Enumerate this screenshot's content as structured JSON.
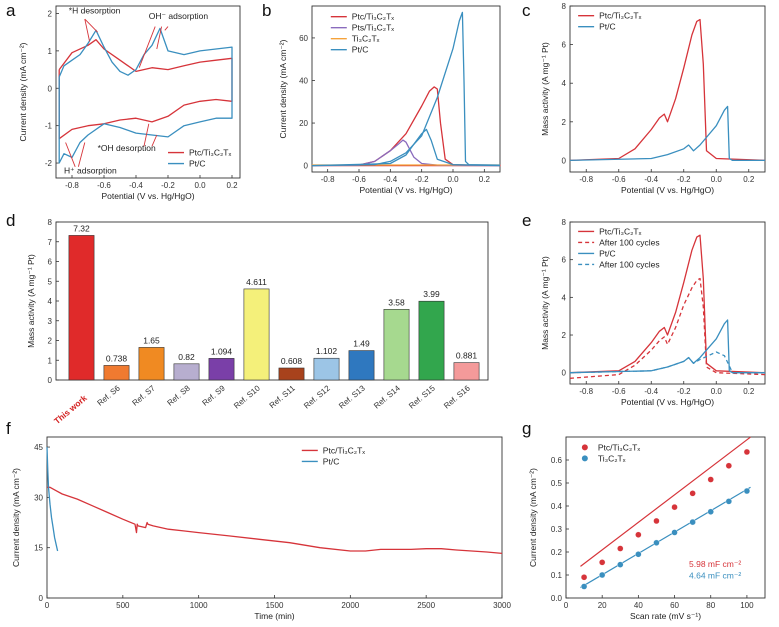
{
  "colors": {
    "red": "#d6343a",
    "blue": "#3a8fbf",
    "purple": "#8a6bbd",
    "orange": "#f5a23a",
    "green": "#2e9e4f",
    "highlight": "#d42020"
  },
  "chart_data": [
    {
      "id": "a",
      "type": "line",
      "panel": "a",
      "xlabel": "Potential (V vs. Hg/HgO)",
      "ylabel": "Current density (mA cm⁻²)",
      "xlim": [
        -0.9,
        0.25
      ],
      "ylim": [
        -2.4,
        2.2
      ],
      "xticks": [
        -0.8,
        -0.6,
        -0.4,
        -0.2,
        0.0,
        0.2
      ],
      "xtick_labels": [
        "-0.8",
        "-0.6",
        "-0.4",
        "-0.2",
        "0.0",
        "0.2"
      ],
      "yticks": [
        -2,
        -1,
        0,
        1,
        2
      ],
      "ytick_labels": [
        "-2",
        "-1",
        "0",
        "1",
        "2"
      ],
      "legend": [
        "Ptc/Ti₃C₂Tₓ",
        "Pt/C"
      ],
      "annotations": [
        "*H desorption",
        "OH⁻ adsorption",
        "*OH desorption",
        "H⁺ adsorption"
      ],
      "series": [
        {
          "name": "Ptc/Ti₃C₂Tₓ",
          "color_key": "red",
          "x": [
            -0.88,
            -0.8,
            -0.7,
            -0.65,
            -0.6,
            -0.5,
            -0.4,
            -0.3,
            -0.2,
            -0.1,
            0.0,
            0.1,
            0.2,
            0.2,
            0.1,
            0.0,
            -0.1,
            -0.2,
            -0.3,
            -0.4,
            -0.5,
            -0.6,
            -0.7,
            -0.8,
            -0.88,
            -0.88
          ],
          "y": [
            0.5,
            0.95,
            1.15,
            1.3,
            1.05,
            0.75,
            0.45,
            0.55,
            0.5,
            0.6,
            0.7,
            0.75,
            0.8,
            -0.35,
            -0.3,
            -0.35,
            -0.45,
            -0.75,
            -0.9,
            -0.8,
            -0.85,
            -0.95,
            -1.0,
            -1.1,
            -1.35,
            0.5
          ]
        },
        {
          "name": "Pt/C",
          "color_key": "blue",
          "x": [
            -0.88,
            -0.85,
            -0.8,
            -0.75,
            -0.7,
            -0.65,
            -0.6,
            -0.55,
            -0.5,
            -0.45,
            -0.4,
            -0.35,
            -0.3,
            -0.25,
            -0.2,
            -0.1,
            0.0,
            0.1,
            0.2,
            0.2,
            0.1,
            0.0,
            -0.1,
            -0.2,
            -0.3,
            -0.4,
            -0.5,
            -0.6,
            -0.7,
            -0.75,
            -0.8,
            -0.85,
            -0.88,
            -0.88
          ],
          "y": [
            0.3,
            0.6,
            0.75,
            0.9,
            1.2,
            1.55,
            1.1,
            0.7,
            0.45,
            0.35,
            0.5,
            0.9,
            1.15,
            1.6,
            1.0,
            0.9,
            1.0,
            1.05,
            1.1,
            -0.8,
            -0.8,
            -0.9,
            -1.0,
            -1.3,
            -1.25,
            -1.2,
            -1.05,
            -0.95,
            -1.25,
            -1.45,
            -1.85,
            -1.75,
            -2.0,
            0.3
          ]
        }
      ]
    },
    {
      "id": "b",
      "type": "line",
      "panel": "b",
      "xlabel": "Potential (V vs. Hg/HgO)",
      "ylabel": "Current density (mA cm⁻²)",
      "xlim": [
        -0.9,
        0.3
      ],
      "ylim": [
        -3,
        75
      ],
      "xticks": [
        -0.8,
        -0.6,
        -0.4,
        -0.2,
        0.0,
        0.2
      ],
      "xtick_labels": [
        "-0.8",
        "-0.6",
        "-0.4",
        "-0.2",
        "0.0",
        "0.2"
      ],
      "yticks": [
        0,
        20,
        40,
        60
      ],
      "ytick_labels": [
        "0",
        "20",
        "40",
        "60"
      ],
      "legend": [
        "Ptc/Ti₃C₂Tₓ",
        "Pts/Ti₃C₂Tₓ",
        "Ti₃C₂Tₓ",
        "Pt/C"
      ],
      "series": [
        {
          "name": "Ptc/Ti₃C₂Tₓ",
          "color_key": "red",
          "x": [
            -0.9,
            -0.6,
            -0.5,
            -0.4,
            -0.3,
            -0.2,
            -0.15,
            -0.12,
            -0.1,
            -0.08,
            -0.05,
            0.0,
            0.1,
            0.3,
            0.3,
            0.1,
            0.0,
            -0.2,
            -0.5,
            -0.9
          ],
          "y": [
            0,
            0.3,
            2,
            7,
            15,
            28,
            35,
            37,
            36,
            20,
            3,
            0.5,
            0.2,
            0.1,
            0,
            0,
            0,
            0,
            0,
            0
          ]
        },
        {
          "name": "Pts/Ti₃C₂Tₓ",
          "color_key": "purple",
          "x": [
            -0.9,
            -0.6,
            -0.5,
            -0.4,
            -0.35,
            -0.32,
            -0.3,
            -0.25,
            -0.2,
            -0.1,
            0.3
          ],
          "y": [
            0,
            0.2,
            2,
            7,
            10,
            12,
            11,
            4,
            1,
            0.2,
            0
          ]
        },
        {
          "name": "Ti₃C₂Tₓ",
          "color_key": "orange",
          "x": [
            -0.9,
            0.3
          ],
          "y": [
            0.3,
            0.3
          ]
        },
        {
          "name": "Pt/C",
          "color_key": "blue",
          "x": [
            -0.9,
            -0.5,
            -0.4,
            -0.3,
            -0.2,
            -0.1,
            0.0,
            0.04,
            0.06,
            0.07,
            0.08,
            0.1,
            0.3
          ],
          "y": [
            0,
            0.5,
            2,
            6,
            14,
            32,
            55,
            68,
            72,
            40,
            2,
            0.5,
            0.2
          ]
        },
        {
          "name": "Pt/C",
          "color_key": "blue",
          "x": [
            -0.9,
            -0.4,
            -0.3,
            -0.25,
            -0.2,
            -0.17,
            -0.14,
            -0.1,
            0.0,
            0.3
          ],
          "y": [
            0,
            1,
            5,
            10,
            15,
            17,
            12,
            3,
            0.5,
            0
          ]
        }
      ]
    },
    {
      "id": "c",
      "type": "line",
      "panel": "c",
      "xlabel": "Potential (V vs. Hg/HgO)",
      "ylabel": "Mass activity (A mg⁻¹ Pt)",
      "xlim": [
        -0.9,
        0.3
      ],
      "ylim": [
        -0.6,
        8
      ],
      "xticks": [
        -0.8,
        -0.6,
        -0.4,
        -0.2,
        0.0,
        0.2
      ],
      "xtick_labels": [
        "-0.8",
        "-0.6",
        "-0.4",
        "-0.2",
        "0.0",
        "0.2"
      ],
      "yticks": [
        0,
        2,
        4,
        6,
        8
      ],
      "ytick_labels": [
        "0",
        "2",
        "4",
        "6",
        "8"
      ],
      "legend": [
        "Ptc/Ti₃C₂Tₓ",
        "Pt/C"
      ],
      "series": [
        {
          "name": "Ptc/Ti₃C₂Tₓ",
          "color_key": "red",
          "x": [
            -0.9,
            -0.6,
            -0.5,
            -0.4,
            -0.35,
            -0.32,
            -0.3,
            -0.25,
            -0.2,
            -0.15,
            -0.12,
            -0.1,
            -0.08,
            -0.06,
            0.0,
            0.3
          ],
          "y": [
            0,
            0.1,
            0.6,
            1.6,
            2.2,
            2.4,
            2.0,
            3.2,
            4.8,
            6.5,
            7.2,
            7.3,
            5.0,
            0.5,
            0.1,
            0
          ]
        },
        {
          "name": "Pt/C",
          "color_key": "blue",
          "x": [
            -0.9,
            -0.4,
            -0.3,
            -0.2,
            -0.17,
            -0.14,
            -0.1,
            0.0,
            0.05,
            0.07,
            0.08,
            0.1,
            0.3
          ],
          "y": [
            0,
            0.1,
            0.3,
            0.6,
            0.8,
            0.5,
            0.8,
            1.8,
            2.6,
            2.8,
            0.1,
            0,
            0
          ]
        }
      ]
    },
    {
      "id": "d",
      "type": "bar",
      "panel": "d",
      "ylabel": "Mass activity (A mg⁻¹ Pt)",
      "ylim": [
        0,
        8
      ],
      "yticks": [
        0,
        1,
        2,
        3,
        4,
        5,
        6,
        7,
        8
      ],
      "ytick_labels": [
        "0",
        "1",
        "2",
        "3",
        "4",
        "5",
        "6",
        "7",
        "8"
      ],
      "categories": [
        "This work",
        "Ref. S6",
        "Ref. S7",
        "Ref. S8",
        "Ref. S9",
        "Ref. S10",
        "Ref. S11",
        "Ref. S12",
        "Ref. S13",
        "Ref. S14",
        "Ref. S15",
        "Ref. S16"
      ],
      "values": [
        7.32,
        0.738,
        1.65,
        0.82,
        1.094,
        4.611,
        0.608,
        1.102,
        1.49,
        3.58,
        3.99,
        0.881
      ],
      "value_labels": [
        "7.32",
        "0.738",
        "1.65",
        "0.82",
        "1.094",
        "4.611",
        "0.608",
        "1.102",
        "1.49",
        "3.58",
        "3.99",
        "0.881"
      ],
      "bar_colors": [
        "#e02a2a",
        "#f07a30",
        "#f08a22",
        "#b7aecf",
        "#7a3fa8",
        "#f4f07a",
        "#a8421c",
        "#9cc5e6",
        "#2f78bf",
        "#a6d98f",
        "#32a64d",
        "#f49a9a"
      ]
    },
    {
      "id": "e",
      "type": "line",
      "panel": "e",
      "xlabel": "Potential (V vs. Hg/HgO)",
      "ylabel": "Mass activity (A mg⁻¹ Pt)",
      "xlim": [
        -0.9,
        0.3
      ],
      "ylim": [
        -0.6,
        8
      ],
      "xticks": [
        -0.8,
        -0.6,
        -0.4,
        -0.2,
        0.0,
        0.2
      ],
      "xtick_labels": [
        "-0.8",
        "-0.6",
        "-0.4",
        "-0.2",
        "0.0",
        "0.2"
      ],
      "yticks": [
        0,
        2,
        4,
        6,
        8
      ],
      "ytick_labels": [
        "0",
        "2",
        "4",
        "6",
        "8"
      ],
      "legend": [
        "Ptc/Ti₃C₂Tₓ",
        "After 100 cycles",
        "Pt/C",
        "After 100 cycles"
      ],
      "series": [
        {
          "name": "Ptc/Ti₃C₂Tₓ",
          "color_key": "red",
          "dash": false,
          "x": [
            -0.9,
            -0.6,
            -0.5,
            -0.4,
            -0.35,
            -0.32,
            -0.3,
            -0.25,
            -0.2,
            -0.15,
            -0.12,
            -0.1,
            -0.08,
            -0.06,
            0.0,
            0.3
          ],
          "y": [
            0,
            0.1,
            0.6,
            1.6,
            2.2,
            2.4,
            2.0,
            3.2,
            4.8,
            6.5,
            7.2,
            7.3,
            5.0,
            0.5,
            0.1,
            0
          ]
        },
        {
          "name": "After 100 cycles",
          "color_key": "red",
          "dash": true,
          "x": [
            -0.9,
            -0.6,
            -0.5,
            -0.4,
            -0.35,
            -0.32,
            -0.3,
            -0.25,
            -0.2,
            -0.15,
            -0.12,
            -0.1,
            -0.08,
            -0.06,
            0.0,
            0.3
          ],
          "y": [
            -0.3,
            -0.1,
            0.4,
            1.2,
            1.7,
            1.9,
            1.5,
            2.4,
            3.6,
            4.5,
            4.9,
            5.0,
            3.5,
            0.3,
            0.0,
            -0.1
          ]
        },
        {
          "name": "Pt/C",
          "color_key": "blue",
          "dash": false,
          "x": [
            -0.9,
            -0.4,
            -0.3,
            -0.2,
            -0.17,
            -0.14,
            -0.1,
            0.0,
            0.05,
            0.07,
            0.08,
            0.1,
            0.3
          ],
          "y": [
            0,
            0.1,
            0.3,
            0.6,
            0.8,
            0.5,
            0.8,
            1.8,
            2.6,
            2.8,
            0.1,
            0,
            0
          ]
        },
        {
          "name": "After 100 cycles",
          "color_key": "blue",
          "dash": true,
          "x": [
            -0.9,
            -0.4,
            -0.3,
            -0.2,
            -0.17,
            -0.14,
            -0.1,
            0.0,
            0.05,
            0.1,
            0.3
          ],
          "y": [
            0,
            0.1,
            0.3,
            0.6,
            0.8,
            0.5,
            0.7,
            1.1,
            0.9,
            0,
            0
          ]
        }
      ]
    },
    {
      "id": "f",
      "type": "line",
      "panel": "f",
      "xlabel": "Time (min)",
      "ylabel": "Current density (mA cm⁻²)",
      "xlim": [
        0,
        3000
      ],
      "ylim": [
        0,
        48
      ],
      "xticks": [
        0,
        500,
        1000,
        1500,
        2000,
        2500,
        3000
      ],
      "xtick_labels": [
        "0",
        "500",
        "1000",
        "1500",
        "2000",
        "2500",
        "3000"
      ],
      "yticks": [
        0,
        15,
        30,
        45
      ],
      "ytick_labels": [
        "0",
        "15",
        "30",
        "45"
      ],
      "legend": [
        "Ptc/Ti₃C₂Tₓ",
        "Pt/C"
      ],
      "series": [
        {
          "name": "Ptc/Ti₃C₂Tₓ",
          "color_key": "red",
          "x": [
            0,
            20,
            60,
            100,
            200,
            300,
            400,
            500,
            580,
            590,
            595,
            600,
            650,
            660,
            665,
            700,
            800,
            900,
            1000,
            1200,
            1400,
            1600,
            1800,
            2000,
            2100,
            2200,
            2300,
            2400,
            2500,
            2600,
            2700,
            2800,
            2900,
            3000
          ],
          "y": [
            33,
            33,
            32,
            31,
            29.5,
            27.5,
            25.5,
            23.5,
            22,
            19.5,
            22,
            21.5,
            21,
            22.5,
            22,
            21.5,
            20.5,
            20,
            19.5,
            18.5,
            17.5,
            16.5,
            15,
            14,
            14,
            14.5,
            14.5,
            14.5,
            14.7,
            14.7,
            14.3,
            14,
            13.7,
            13.3
          ]
        },
        {
          "name": "Pt/C",
          "color_key": "blue",
          "x": [
            0,
            5,
            10,
            20,
            30,
            40,
            50,
            60,
            70
          ],
          "y": [
            45,
            38,
            33,
            28,
            24,
            21,
            18,
            16,
            14
          ]
        }
      ]
    },
    {
      "id": "g",
      "type": "scatter",
      "panel": "g",
      "xlabel": "Scan rate (mV s⁻¹)",
      "ylabel": "Current density (mA cm⁻²)",
      "xlim": [
        0,
        110
      ],
      "ylim": [
        0,
        0.7
      ],
      "xticks": [
        0,
        20,
        40,
        60,
        80,
        100
      ],
      "xtick_labels": [
        "0",
        "20",
        "40",
        "60",
        "80",
        "100"
      ],
      "yticks": [
        0.0,
        0.1,
        0.2,
        0.3,
        0.4,
        0.5,
        0.6
      ],
      "ytick_labels": [
        "0.0",
        "0.1",
        "0.2",
        "0.3",
        "0.4",
        "0.5",
        "0.6"
      ],
      "legend": [
        "Ptc/Ti₃C₂Tₓ",
        "Ti₃C₂Tₓ"
      ],
      "annotations": [
        "5.98 mF cm⁻²",
        "4.64 mF cm⁻²"
      ],
      "series": [
        {
          "name": "Ptc/Ti₃C₂Tₓ",
          "color_key": "red",
          "x": [
            10,
            20,
            30,
            40,
            50,
            60,
            70,
            80,
            90,
            100
          ],
          "y": [
            0.09,
            0.155,
            0.215,
            0.275,
            0.335,
            0.395,
            0.455,
            0.515,
            0.575,
            0.635
          ],
          "fit": [
            0.0898,
            0.00598
          ]
        },
        {
          "name": "Ti₃C₂Tₓ",
          "color_key": "blue",
          "x": [
            10,
            20,
            30,
            40,
            50,
            60,
            70,
            80,
            90,
            100
          ],
          "y": [
            0.05,
            0.1,
            0.145,
            0.19,
            0.24,
            0.285,
            0.33,
            0.375,
            0.42,
            0.465
          ],
          "fit": [
            0.0082,
            0.00464
          ]
        }
      ]
    }
  ],
  "panel_letters": [
    "a",
    "b",
    "c",
    "d",
    "e",
    "f",
    "g"
  ]
}
